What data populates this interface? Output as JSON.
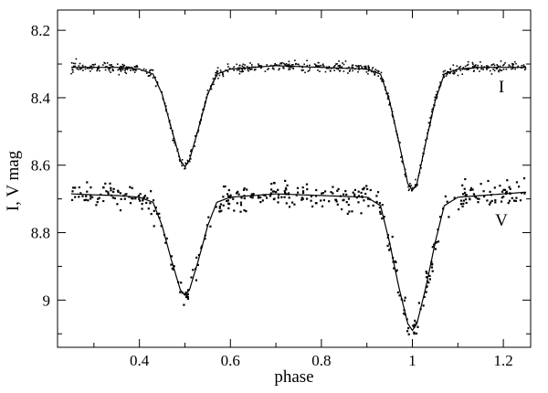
{
  "chart_data": {
    "type": "scatter",
    "xlabel": "phase",
    "ylabel": "I, V mag",
    "xlim": [
      0.22,
      1.26
    ],
    "ylim": [
      9.14,
      8.14
    ],
    "y_inverted": true,
    "xticks": [
      0.4,
      0.6,
      0.8,
      1,
      1.2
    ],
    "xtick_labels": [
      "0.4",
      "0.6",
      "0.8",
      "1",
      "1.2"
    ],
    "yticks": [
      8.2,
      8.4,
      8.6,
      8.8,
      9
    ],
    "ytick_labels": [
      "8.2",
      "8.4",
      "8.6",
      "8.8",
      "9"
    ],
    "grid": false,
    "series": [
      {
        "name": "I",
        "marker": "dots",
        "model_curve": {
          "x": [
            0.25,
            0.3,
            0.35,
            0.4,
            0.43,
            0.45,
            0.47,
            0.49,
            0.5,
            0.51,
            0.53,
            0.55,
            0.57,
            0.6,
            0.7,
            0.8,
            0.9,
            0.93,
            0.95,
            0.97,
            0.99,
            1.0,
            1.01,
            1.03,
            1.05,
            1.07,
            1.1,
            1.15,
            1.2,
            1.25
          ],
          "y": [
            8.31,
            8.31,
            8.31,
            8.315,
            8.33,
            8.39,
            8.49,
            8.585,
            8.605,
            8.585,
            8.49,
            8.39,
            8.33,
            8.315,
            8.305,
            8.31,
            8.315,
            8.33,
            8.41,
            8.53,
            8.655,
            8.675,
            8.655,
            8.53,
            8.41,
            8.33,
            8.315,
            8.31,
            8.31,
            8.31
          ]
        },
        "scatter_sigma": 0.007
      },
      {
        "name": "V",
        "marker": "dots",
        "model_curve": {
          "x": [
            0.25,
            0.3,
            0.35,
            0.4,
            0.43,
            0.45,
            0.47,
            0.49,
            0.5,
            0.51,
            0.53,
            0.55,
            0.57,
            0.6,
            0.7,
            0.8,
            0.9,
            0.93,
            0.95,
            0.97,
            0.99,
            1.0,
            1.01,
            1.03,
            1.05,
            1.07,
            1.1,
            1.15,
            1.2,
            1.25
          ],
          "y": [
            8.685,
            8.688,
            8.69,
            8.695,
            8.71,
            8.78,
            8.88,
            8.97,
            8.985,
            8.97,
            8.88,
            8.78,
            8.71,
            8.695,
            8.685,
            8.69,
            8.695,
            8.72,
            8.83,
            8.96,
            9.07,
            9.09,
            9.07,
            8.96,
            8.83,
            8.72,
            8.695,
            8.69,
            8.685,
            8.68
          ]
        },
        "scatter_sigma": 0.02
      }
    ]
  }
}
